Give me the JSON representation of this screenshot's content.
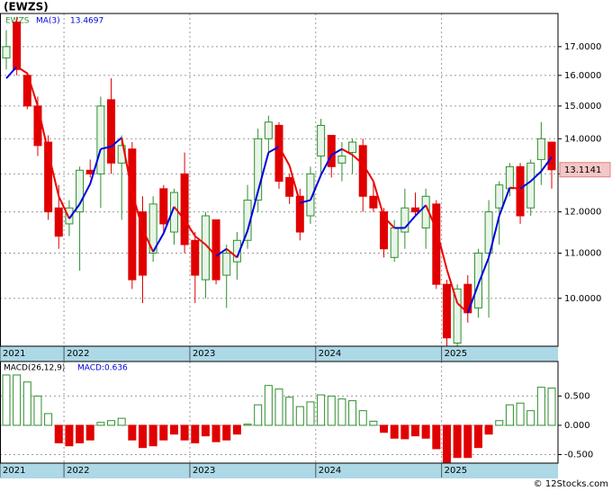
{
  "chart_data": [
    {
      "type": "candlestick",
      "title": "(EWZS)",
      "name": "EWZS",
      "log": true,
      "grid": true,
      "up_color": "#2f8f2f",
      "down_color": "#e00000",
      "xlim": [
        -0.6,
        52.6
      ],
      "xticks": [
        {
          "value": -0.6,
          "label": "2021"
        },
        {
          "value": 5.5,
          "label": "2022"
        },
        {
          "value": 17.5,
          "label": "2023"
        },
        {
          "value": 29.5,
          "label": "2024"
        },
        {
          "value": 41.5,
          "label": "2025"
        }
      ],
      "ylim": [
        9.04,
        18.23
      ],
      "yticks": [
        {
          "value": 10,
          "label": "10.0000"
        },
        {
          "value": 11,
          "label": "11.0000"
        },
        {
          "value": 12,
          "label": "12.0000"
        },
        {
          "value": 13,
          "label": "13.0000"
        },
        {
          "value": 14,
          "label": "14.0000"
        },
        {
          "value": 15,
          "label": "15.0000"
        },
        {
          "value": 16,
          "label": "16.0000"
        },
        {
          "value": 17,
          "label": "17.0000"
        }
      ],
      "open": [
        16.6,
        17.9,
        16.0,
        15.0,
        13.9,
        12.1,
        11.7,
        12.0,
        13.1,
        13.0,
        15.2,
        13.3,
        13.7,
        12.0,
        11.0,
        12.6,
        11.5,
        13.0,
        11.3,
        10.4,
        11.8,
        10.5,
        10.8,
        11.3,
        12.3,
        14.0,
        14.4,
        12.9,
        12.4,
        11.9,
        13.5,
        14.1,
        13.3,
        13.6,
        13.8,
        12.4,
        12.0,
        10.9,
        11.5,
        12.1,
        11.6,
        12.2,
        10.3,
        9.1,
        10.3,
        9.8,
        11.0,
        12.1,
        12.6,
        13.2,
        12.1,
        13.4,
        13.9
      ],
      "high": [
        17.6,
        18.1,
        16.1,
        15.3,
        14.1,
        12.7,
        12.3,
        13.2,
        13.4,
        15.3,
        15.9,
        14.1,
        13.9,
        12.4,
        12.4,
        12.7,
        12.6,
        13.6,
        11.5,
        12.0,
        11.8,
        11.2,
        11.5,
        12.7,
        14.3,
        14.7,
        14.5,
        13.0,
        12.6,
        13.2,
        14.6,
        14.1,
        13.9,
        14.0,
        14.0,
        12.8,
        12.1,
        11.8,
        12.6,
        12.5,
        12.6,
        12.3,
        10.4,
        10.3,
        10.5,
        11.1,
        12.3,
        12.8,
        13.3,
        13.3,
        13.4,
        14.5,
        13.9
      ],
      "low": [
        16.2,
        16.0,
        14.9,
        13.5,
        11.8,
        11.1,
        11.4,
        10.6,
        12.9,
        12.1,
        13.0,
        11.8,
        10.2,
        9.9,
        10.8,
        11.5,
        11.2,
        11.0,
        9.9,
        10.0,
        10.3,
        9.8,
        10.4,
        11.1,
        12.0,
        13.6,
        12.6,
        12.2,
        11.3,
        11.7,
        13.0,
        12.9,
        12.8,
        13.0,
        12.0,
        12.0,
        10.9,
        10.8,
        11.1,
        11.9,
        11.1,
        10.2,
        9.05,
        9.05,
        9.5,
        9.6,
        9.6,
        11.2,
        12.4,
        11.7,
        11.9,
        12.7,
        12.6
      ],
      "close": [
        17.0,
        16.2,
        15.0,
        13.8,
        12.0,
        11.4,
        12.1,
        13.1,
        13.0,
        15.0,
        13.3,
        13.8,
        10.4,
        10.5,
        12.2,
        11.7,
        12.5,
        11.2,
        10.5,
        11.9,
        10.4,
        11.0,
        11.3,
        12.3,
        14.0,
        14.5,
        12.8,
        12.4,
        11.5,
        13.0,
        14.4,
        13.2,
        13.5,
        13.9,
        12.4,
        12.1,
        11.1,
        11.6,
        12.1,
        12.0,
        12.4,
        10.3,
        9.2,
        10.2,
        9.7,
        11.0,
        12.0,
        12.7,
        13.2,
        11.9,
        13.3,
        14.0,
        13.1141
      ],
      "ma": {
        "name": "MA(3)",
        "up_color": "#0000dd",
        "down_color": "#ee0000",
        "values": [
          15.9,
          16.3,
          16.07,
          15.0,
          13.6,
          12.4,
          11.83,
          12.2,
          12.73,
          13.7,
          13.77,
          14.03,
          12.5,
          11.57,
          11.03,
          11.47,
          12.13,
          11.8,
          11.4,
          11.2,
          10.93,
          11.1,
          10.9,
          11.53,
          12.53,
          13.6,
          13.77,
          13.23,
          12.23,
          12.3,
          12.97,
          13.53,
          13.7,
          13.53,
          13.27,
          12.8,
          11.87,
          11.6,
          11.6,
          11.9,
          12.17,
          11.57,
          10.63,
          9.9,
          9.7,
          10.3,
          10.9,
          11.9,
          12.63,
          12.6,
          12.8,
          13.07,
          13.4697
        ]
      }
    },
    {
      "type": "bar",
      "name": "MACD(26,12,9)",
      "value_label": "MACD:0.636",
      "grid": true,
      "up_color": "#2f8f2f",
      "down_color": "#e00000",
      "ylim": [
        -0.646,
        1.09
      ],
      "yticks": [
        {
          "value": -0.5,
          "label": "-0.500"
        },
        {
          "value": 0,
          "label": "0.000"
        },
        {
          "value": 0.5,
          "label": "0.500"
        }
      ],
      "values": [
        0.86,
        0.86,
        0.74,
        0.5,
        0.2,
        -0.3,
        -0.35,
        -0.3,
        -0.25,
        0.05,
        0.08,
        0.12,
        -0.25,
        -0.38,
        -0.35,
        -0.25,
        -0.15,
        -0.25,
        -0.3,
        -0.18,
        -0.28,
        -0.25,
        -0.15,
        0.02,
        0.35,
        0.68,
        0.62,
        0.48,
        0.32,
        0.4,
        0.52,
        0.5,
        0.45,
        0.42,
        0.25,
        0.07,
        -0.12,
        -0.22,
        -0.23,
        -0.18,
        -0.22,
        -0.4,
        -0.63,
        -0.55,
        -0.55,
        -0.38,
        -0.15,
        0.08,
        0.35,
        0.38,
        0.25,
        0.65,
        0.636
      ]
    }
  ],
  "footer": "© 12Stocks.com"
}
